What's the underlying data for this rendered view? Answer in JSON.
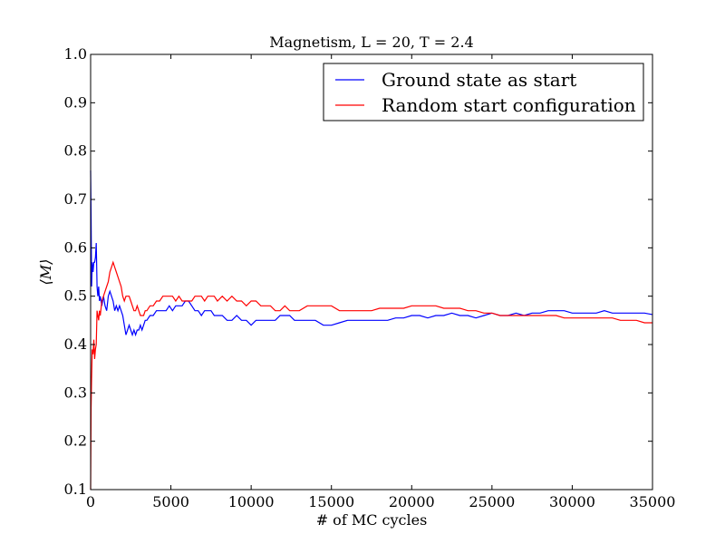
{
  "chart_data": {
    "type": "line",
    "title": "Magnetism, L = 20, T = 2.4",
    "xlabel": "# of MC cycles",
    "ylabel": "⟨M⟩",
    "xlim": [
      0,
      35000
    ],
    "ylim": [
      0.1,
      1.0
    ],
    "xticks": [
      "0",
      "5000",
      "10000",
      "15000",
      "20000",
      "25000",
      "30000",
      "35000"
    ],
    "yticks": [
      "0.1",
      "0.2",
      "0.3",
      "0.4",
      "0.5",
      "0.6",
      "0.7",
      "0.8",
      "0.9",
      "1.0"
    ],
    "grid": false,
    "legend_position": "upper right",
    "series": [
      {
        "name": "Ground state as start",
        "color": "#0000ff",
        "x": [
          0,
          30,
          60,
          100,
          150,
          200,
          250,
          300,
          350,
          400,
          450,
          500,
          550,
          600,
          700,
          800,
          900,
          1000,
          1100,
          1200,
          1300,
          1400,
          1500,
          1600,
          1700,
          1800,
          1900,
          2000,
          2100,
          2200,
          2300,
          2400,
          2500,
          2600,
          2700,
          2800,
          2900,
          3000,
          3100,
          3200,
          3300,
          3400,
          3500,
          3700,
          3900,
          4100,
          4300,
          4500,
          4700,
          4900,
          5100,
          5300,
          5500,
          5700,
          5900,
          6100,
          6300,
          6500,
          6700,
          6900,
          7100,
          7300,
          7500,
          7700,
          7900,
          8200,
          8500,
          8800,
          9100,
          9400,
          9700,
          10000,
          10300,
          10600,
          10900,
          11200,
          11500,
          11800,
          12100,
          12400,
          12700,
          13000,
          13500,
          14000,
          14500,
          15000,
          15500,
          16000,
          16500,
          17000,
          17500,
          18000,
          18500,
          19000,
          19500,
          20000,
          20500,
          21000,
          21500,
          22000,
          22500,
          23000,
          23500,
          24000,
          24500,
          25000,
          25500,
          26000,
          26500,
          27000,
          27500,
          28000,
          28500,
          29000,
          29500,
          30000,
          30500,
          31000,
          31500,
          32000,
          32500,
          33000,
          33500,
          34000,
          34500,
          35000
        ],
        "y": [
          0.76,
          0.66,
          0.52,
          0.57,
          0.55,
          0.57,
          0.57,
          0.58,
          0.61,
          0.52,
          0.5,
          0.52,
          0.49,
          0.5,
          0.48,
          0.5,
          0.48,
          0.47,
          0.5,
          0.51,
          0.5,
          0.49,
          0.47,
          0.48,
          0.47,
          0.48,
          0.47,
          0.46,
          0.44,
          0.42,
          0.43,
          0.44,
          0.43,
          0.42,
          0.43,
          0.42,
          0.43,
          0.43,
          0.44,
          0.43,
          0.44,
          0.45,
          0.45,
          0.46,
          0.46,
          0.47,
          0.47,
          0.47,
          0.47,
          0.48,
          0.47,
          0.48,
          0.48,
          0.48,
          0.49,
          0.49,
          0.48,
          0.47,
          0.47,
          0.46,
          0.47,
          0.47,
          0.47,
          0.46,
          0.46,
          0.46,
          0.45,
          0.45,
          0.46,
          0.45,
          0.45,
          0.44,
          0.45,
          0.45,
          0.45,
          0.45,
          0.45,
          0.46,
          0.46,
          0.46,
          0.45,
          0.45,
          0.45,
          0.45,
          0.44,
          0.44,
          0.445,
          0.45,
          0.45,
          0.45,
          0.45,
          0.45,
          0.45,
          0.455,
          0.455,
          0.46,
          0.46,
          0.455,
          0.46,
          0.46,
          0.465,
          0.46,
          0.46,
          0.455,
          0.46,
          0.465,
          0.46,
          0.46,
          0.465,
          0.46,
          0.465,
          0.465,
          0.47,
          0.47,
          0.47,
          0.465,
          0.465,
          0.465,
          0.465,
          0.47,
          0.465,
          0.465,
          0.465,
          0.465,
          0.465,
          0.462
        ]
      },
      {
        "name": "Random start configuration",
        "color": "#ff0000",
        "x": [
          0,
          30,
          60,
          100,
          150,
          200,
          250,
          300,
          350,
          400,
          450,
          500,
          550,
          600,
          700,
          800,
          900,
          1000,
          1100,
          1200,
          1300,
          1400,
          1500,
          1600,
          1700,
          1800,
          1900,
          2000,
          2100,
          2200,
          2300,
          2400,
          2500,
          2600,
          2700,
          2800,
          2900,
          3000,
          3100,
          3200,
          3300,
          3400,
          3500,
          3700,
          3900,
          4100,
          4300,
          4500,
          4700,
          4900,
          5100,
          5300,
          5500,
          5700,
          5900,
          6100,
          6300,
          6500,
          6700,
          6900,
          7100,
          7300,
          7500,
          7700,
          7900,
          8200,
          8500,
          8800,
          9100,
          9400,
          9700,
          10000,
          10300,
          10600,
          10900,
          11200,
          11500,
          11800,
          12100,
          12400,
          12700,
          13000,
          13500,
          14000,
          14500,
          15000,
          15500,
          16000,
          16500,
          17000,
          17500,
          18000,
          18500,
          19000,
          19500,
          20000,
          20500,
          21000,
          21500,
          22000,
          22500,
          23000,
          23500,
          24000,
          24500,
          25000,
          25500,
          26000,
          26500,
          27000,
          27500,
          28000,
          28500,
          29000,
          29500,
          30000,
          30500,
          31000,
          31500,
          32000,
          32500,
          33000,
          33500,
          34000,
          34500,
          35000
        ],
        "y": [
          0.1,
          0.27,
          0.33,
          0.39,
          0.38,
          0.41,
          0.37,
          0.39,
          0.4,
          0.47,
          0.46,
          0.45,
          0.47,
          0.46,
          0.49,
          0.5,
          0.51,
          0.52,
          0.53,
          0.55,
          0.56,
          0.57,
          0.56,
          0.55,
          0.54,
          0.53,
          0.52,
          0.5,
          0.49,
          0.5,
          0.5,
          0.5,
          0.49,
          0.48,
          0.47,
          0.47,
          0.48,
          0.47,
          0.46,
          0.46,
          0.46,
          0.47,
          0.47,
          0.48,
          0.48,
          0.49,
          0.49,
          0.5,
          0.5,
          0.5,
          0.5,
          0.49,
          0.5,
          0.49,
          0.49,
          0.49,
          0.49,
          0.5,
          0.5,
          0.5,
          0.49,
          0.5,
          0.5,
          0.5,
          0.49,
          0.5,
          0.49,
          0.5,
          0.49,
          0.49,
          0.48,
          0.49,
          0.49,
          0.48,
          0.48,
          0.48,
          0.47,
          0.47,
          0.48,
          0.47,
          0.47,
          0.47,
          0.48,
          0.48,
          0.48,
          0.48,
          0.47,
          0.47,
          0.47,
          0.47,
          0.47,
          0.475,
          0.475,
          0.475,
          0.475,
          0.48,
          0.48,
          0.48,
          0.48,
          0.475,
          0.475,
          0.475,
          0.47,
          0.47,
          0.465,
          0.465,
          0.46,
          0.46,
          0.46,
          0.46,
          0.46,
          0.46,
          0.46,
          0.46,
          0.455,
          0.455,
          0.455,
          0.455,
          0.455,
          0.455,
          0.455,
          0.45,
          0.45,
          0.45,
          0.445,
          0.445
        ]
      }
    ]
  }
}
